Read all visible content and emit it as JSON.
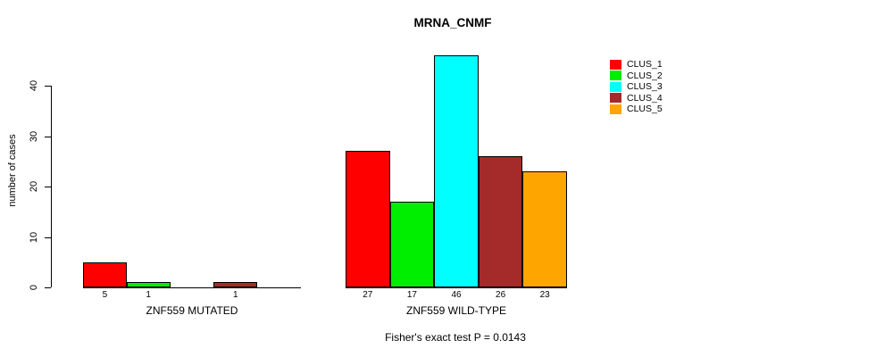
{
  "chart_data": {
    "type": "bar",
    "title": "MRNA_CNMF",
    "ylabel": "number of cases",
    "xlabel": "",
    "ylim": [
      0,
      46
    ],
    "yticks": [
      0,
      10,
      20,
      30,
      40
    ],
    "grid": false,
    "legend_position": "top-right",
    "legend": [
      {
        "label": "CLUS_1",
        "color": "#FF0000"
      },
      {
        "label": "CLUS_2",
        "color": "#00EE00"
      },
      {
        "label": "CLUS_3",
        "color": "#00FFFF"
      },
      {
        "label": "CLUS_4",
        "color": "#A52A2A"
      },
      {
        "label": "CLUS_5",
        "color": "#FFA500"
      }
    ],
    "categories": [
      "ZNF559 MUTATED",
      "ZNF559 WILD-TYPE"
    ],
    "series": [
      {
        "name": "CLUS_1",
        "color": "#FF0000",
        "values": [
          5,
          27
        ]
      },
      {
        "name": "CLUS_2",
        "color": "#00EE00",
        "values": [
          1,
          17
        ]
      },
      {
        "name": "CLUS_3",
        "color": "#00FFFF",
        "values": [
          0,
          46
        ]
      },
      {
        "name": "CLUS_4",
        "color": "#A52A2A",
        "values": [
          1,
          26
        ]
      },
      {
        "name": "CLUS_5",
        "color": "#FFA500",
        "values": [
          0,
          23
        ]
      }
    ],
    "bar_value_labels": [
      [
        "5",
        "1",
        "",
        "1",
        ""
      ],
      [
        "27",
        "17",
        "46",
        "26",
        "23"
      ]
    ],
    "annotation": "Fisher's exact test P = 0.0143"
  }
}
